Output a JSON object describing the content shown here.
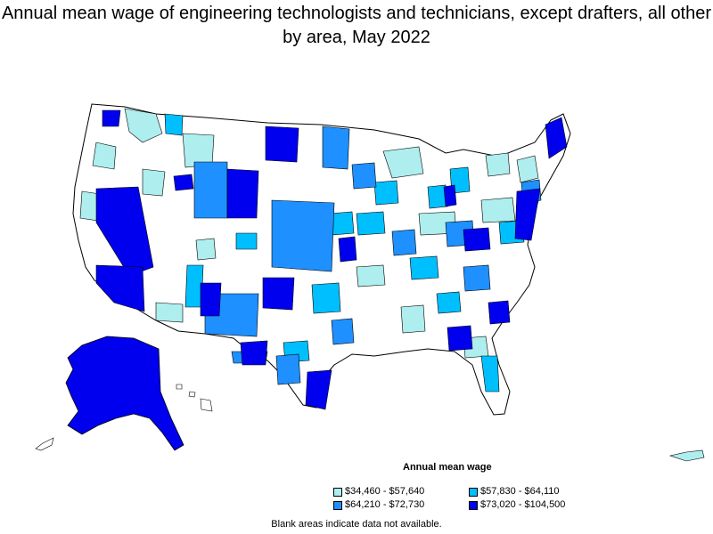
{
  "title": "Annual mean wage of engineering technologists and technicians, except drafters, all other by area, May 2022",
  "legend": {
    "title": "Annual mean wage",
    "items": [
      {
        "label": "$34,460 - $57,640",
        "color": "#aeeeee"
      },
      {
        "label": "$57,830 - $64,110",
        "color": "#00bfff"
      },
      {
        "label": "$64,210 - $72,730",
        "color": "#1e90ff"
      },
      {
        "label": "$73,020 - $104,500",
        "color": "#0000ee"
      }
    ]
  },
  "footnote": "Blank areas indicate data not available.",
  "colors": {
    "border": "#000000",
    "no_data": "#ffffff"
  }
}
